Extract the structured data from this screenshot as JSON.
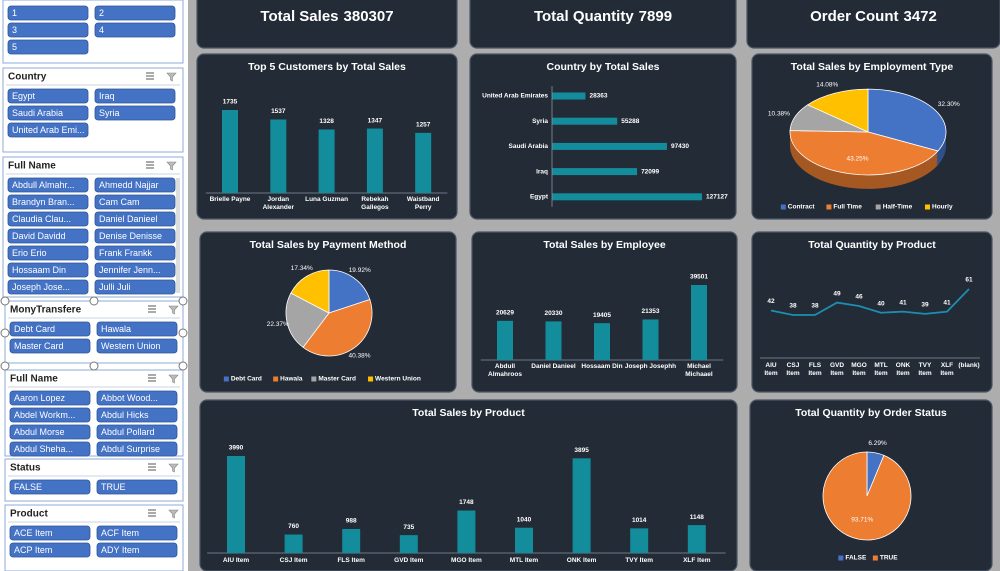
{
  "slicers": [
    {
      "items": [
        "1",
        "2",
        "3",
        "4",
        "5"
      ]
    },
    {
      "title": "Country",
      "items": [
        "Egypt",
        "Iraq",
        "Saudi Arabia",
        "Syria",
        "United Arab Emi..."
      ]
    },
    {
      "title": "Full Name",
      "items": [
        "Abdull Almahr...",
        "Ahmedd Najjar",
        "Brandyn Bran...",
        "Cam Cam",
        "Claudia Clau...",
        "Daniel Danieel",
        "David Davidd",
        "Denise Denisse",
        "Erio Erio",
        "Frank Frankk",
        "Hossaam Din",
        "Jennifer Jenn...",
        "Joseph Jose...",
        "Julli Juli"
      ]
    },
    {
      "title": "MonyTransfere",
      "items": [
        "Debt Card",
        "Hawala",
        "Master Card",
        "Western Union"
      ]
    },
    {
      "title": "Full Name",
      "items": [
        "Aaron Lopez",
        "Abbot Wood...",
        "Abdel Workm...",
        "Abdul Hicks",
        "Abdul Morse",
        "Abdul Pollard",
        "Abdul Sheha...",
        "Abdul Surprise"
      ]
    },
    {
      "title": "Status",
      "items": [
        "FALSE",
        "TRUE"
      ]
    },
    {
      "title": "Product",
      "items": [
        "ACE Item",
        "ACF Item",
        "ACP Item",
        "ADY Item"
      ]
    }
  ],
  "kpis": [
    {
      "label": "Total Sales",
      "value": 380307
    },
    {
      "label": "Total Quantity",
      "value": 7899
    },
    {
      "label": "Order Count",
      "value": 3472
    }
  ],
  "chart_data": [
    {
      "type": "bar",
      "title": "Top 5 Customers by Total Sales",
      "color": "#138c9c",
      "categories": [
        "Brielle Payne",
        "Jordan Alexander",
        "Luna Guzman",
        "Rebekah Gallegos",
        "Waistband Perry"
      ],
      "values": [
        1735,
        1537,
        1328,
        1347,
        1257
      ]
    },
    {
      "type": "bar",
      "orientation": "horizontal",
      "title": "Country by Total Sales",
      "color": "#138c9c",
      "categories": [
        "United Arab Emirates",
        "Syria",
        "Saudi Arabia",
        "Iraq",
        "Egypt"
      ],
      "values": [
        28363,
        55288,
        97430,
        72099,
        127127
      ]
    },
    {
      "type": "pie",
      "3d": true,
      "title": "Total Sales by Employment Type",
      "categories": [
        "Contract",
        "Full Time",
        "Half-Time",
        "Hourly"
      ],
      "colors": [
        "#4472c4",
        "#ed7d31",
        "#a5a5a5",
        "#ffc000"
      ],
      "values": [
        32.3,
        43.25,
        10.38,
        14.08
      ],
      "value_labels": [
        "32.30%",
        "43.25%",
        "10.38%",
        "14.08%"
      ]
    },
    {
      "type": "pie",
      "title": "Total Sales by Payment Method",
      "categories": [
        "Debt Card",
        "Hawala",
        "Master Card",
        "Western Union"
      ],
      "colors": [
        "#4472c4",
        "#ed7d31",
        "#a5a5a5",
        "#ffc000"
      ],
      "values": [
        19.92,
        40.38,
        22.37,
        17.34
      ],
      "value_labels": [
        "19.92%",
        "40.38%",
        "22.37%",
        "17.34%"
      ]
    },
    {
      "type": "bar",
      "title": "Total Sales by Employee",
      "color": "#138c9c",
      "categories": [
        "Abdull Almahroos",
        "Daniel Danieel",
        "Hossaam Din",
        "Joseph Josephh",
        "Michael Michaael"
      ],
      "values": [
        20629,
        20330,
        19405,
        21353,
        39501
      ]
    },
    {
      "type": "line",
      "title": "Total Quantity by Product",
      "color": "#1c8fb0",
      "categories": [
        "AIU Item",
        "CSJ Item",
        "FLS Item",
        "GVD Item",
        "MGO Item",
        "MTL Item",
        "ONK Item",
        "TVY Item",
        "XLF Item",
        "(blank)"
      ],
      "values": [
        42,
        38,
        38,
        49,
        46,
        40,
        41,
        39,
        41,
        61
      ]
    },
    {
      "type": "bar",
      "title": "Total Sales by Product",
      "color": "#138c9c",
      "categories": [
        "AIU Item",
        "CSJ Item",
        "FLS Item",
        "GVD Item",
        "MGO Item",
        "MTL Item",
        "ONK Item",
        "TVY Item",
        "XLF Item"
      ],
      "values": [
        3990,
        760,
        988,
        735,
        1748,
        1040,
        3895,
        1014,
        1148
      ]
    },
    {
      "type": "pie",
      "title": "Total Quantity by Order Status",
      "categories": [
        "FALSE",
        "TRUE"
      ],
      "colors": [
        "#4472c4",
        "#ed7d31"
      ],
      "values": [
        6.29,
        93.71
      ],
      "value_labels": [
        "6.29%",
        "93.71%"
      ]
    }
  ]
}
